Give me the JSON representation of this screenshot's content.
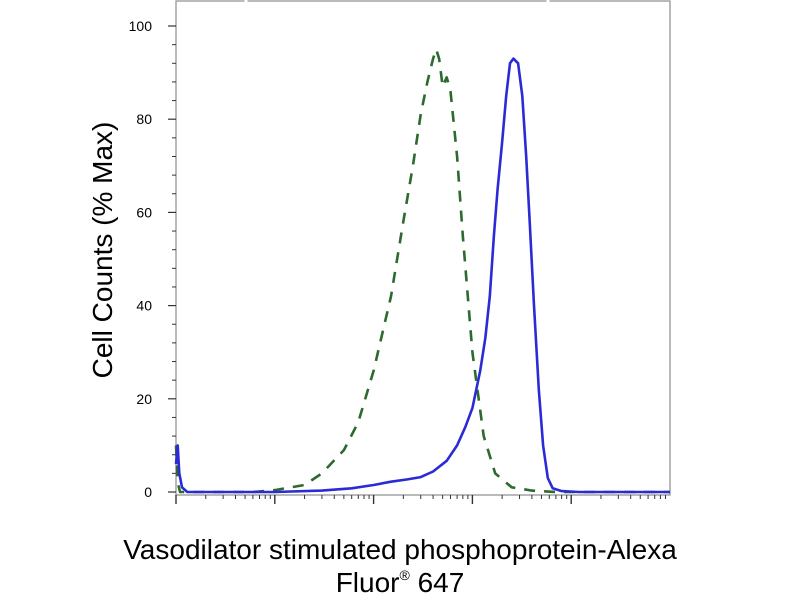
{
  "chart_data": {
    "type": "line",
    "ylabel": "Cell Counts (% Max)",
    "xlabel_line1": "Vasodilator stimulated phosphoprotein-Alexa",
    "xlabel_line2_main": "Fluor",
    "xlabel_line2_sup": "®",
    "xlabel_line2_tail": " 647",
    "xscale": "log",
    "xlim": [
      0.1,
      10000
    ],
    "ylim": [
      0,
      100
    ],
    "yticks": [
      0,
      20,
      40,
      60,
      80,
      100
    ],
    "ytick_labels": [
      "0",
      "20",
      "40",
      "60",
      "80",
      "100"
    ],
    "xtick_labels_shown": false,
    "grid": false,
    "legend": "none",
    "series": [
      {
        "color": "#2d6a2d",
        "dash": "dashed",
        "points": [
          [
            0.1,
            10
          ],
          [
            0.104,
            2
          ],
          [
            0.11,
            0
          ],
          [
            0.2,
            0
          ],
          [
            0.4,
            0
          ],
          [
            0.6,
            0
          ],
          [
            1,
            0.4
          ],
          [
            2,
            1.5
          ],
          [
            3,
            4
          ],
          [
            5,
            9
          ],
          [
            7,
            15
          ],
          [
            10,
            26
          ],
          [
            15,
            42
          ],
          [
            20,
            58
          ],
          [
            25,
            70
          ],
          [
            30,
            81
          ],
          [
            35,
            88
          ],
          [
            40,
            93
          ],
          [
            43,
            95
          ],
          [
            46,
            93
          ],
          [
            50,
            87
          ],
          [
            55,
            89
          ],
          [
            60,
            86
          ],
          [
            70,
            72
          ],
          [
            80,
            55
          ],
          [
            100,
            30
          ],
          [
            130,
            12
          ],
          [
            170,
            4
          ],
          [
            250,
            1
          ],
          [
            400,
            0.3
          ],
          [
            700,
            0
          ],
          [
            10000,
            0
          ]
        ]
      },
      {
        "color": "#2b2bd6",
        "dash": "solid",
        "points": [
          [
            0.1,
            6
          ],
          [
            0.104,
            10
          ],
          [
            0.108,
            4
          ],
          [
            0.115,
            1
          ],
          [
            0.13,
            0
          ],
          [
            1,
            0
          ],
          [
            3,
            0.3
          ],
          [
            6,
            0.8
          ],
          [
            10,
            1.5
          ],
          [
            15,
            2.2
          ],
          [
            22,
            2.7
          ],
          [
            30,
            3.2
          ],
          [
            40,
            4.4
          ],
          [
            55,
            6.7
          ],
          [
            70,
            10
          ],
          [
            85,
            14
          ],
          [
            100,
            18
          ],
          [
            120,
            26
          ],
          [
            135,
            33
          ],
          [
            150,
            42
          ],
          [
            165,
            55
          ],
          [
            180,
            65
          ],
          [
            200,
            75
          ],
          [
            220,
            85
          ],
          [
            240,
            92
          ],
          [
            260,
            93
          ],
          [
            290,
            92
          ],
          [
            320,
            85
          ],
          [
            350,
            72
          ],
          [
            380,
            58
          ],
          [
            420,
            40
          ],
          [
            470,
            22
          ],
          [
            520,
            10
          ],
          [
            580,
            3
          ],
          [
            650,
            0.8
          ],
          [
            800,
            0.2
          ],
          [
            1200,
            0
          ],
          [
            10000,
            0
          ]
        ]
      }
    ]
  }
}
